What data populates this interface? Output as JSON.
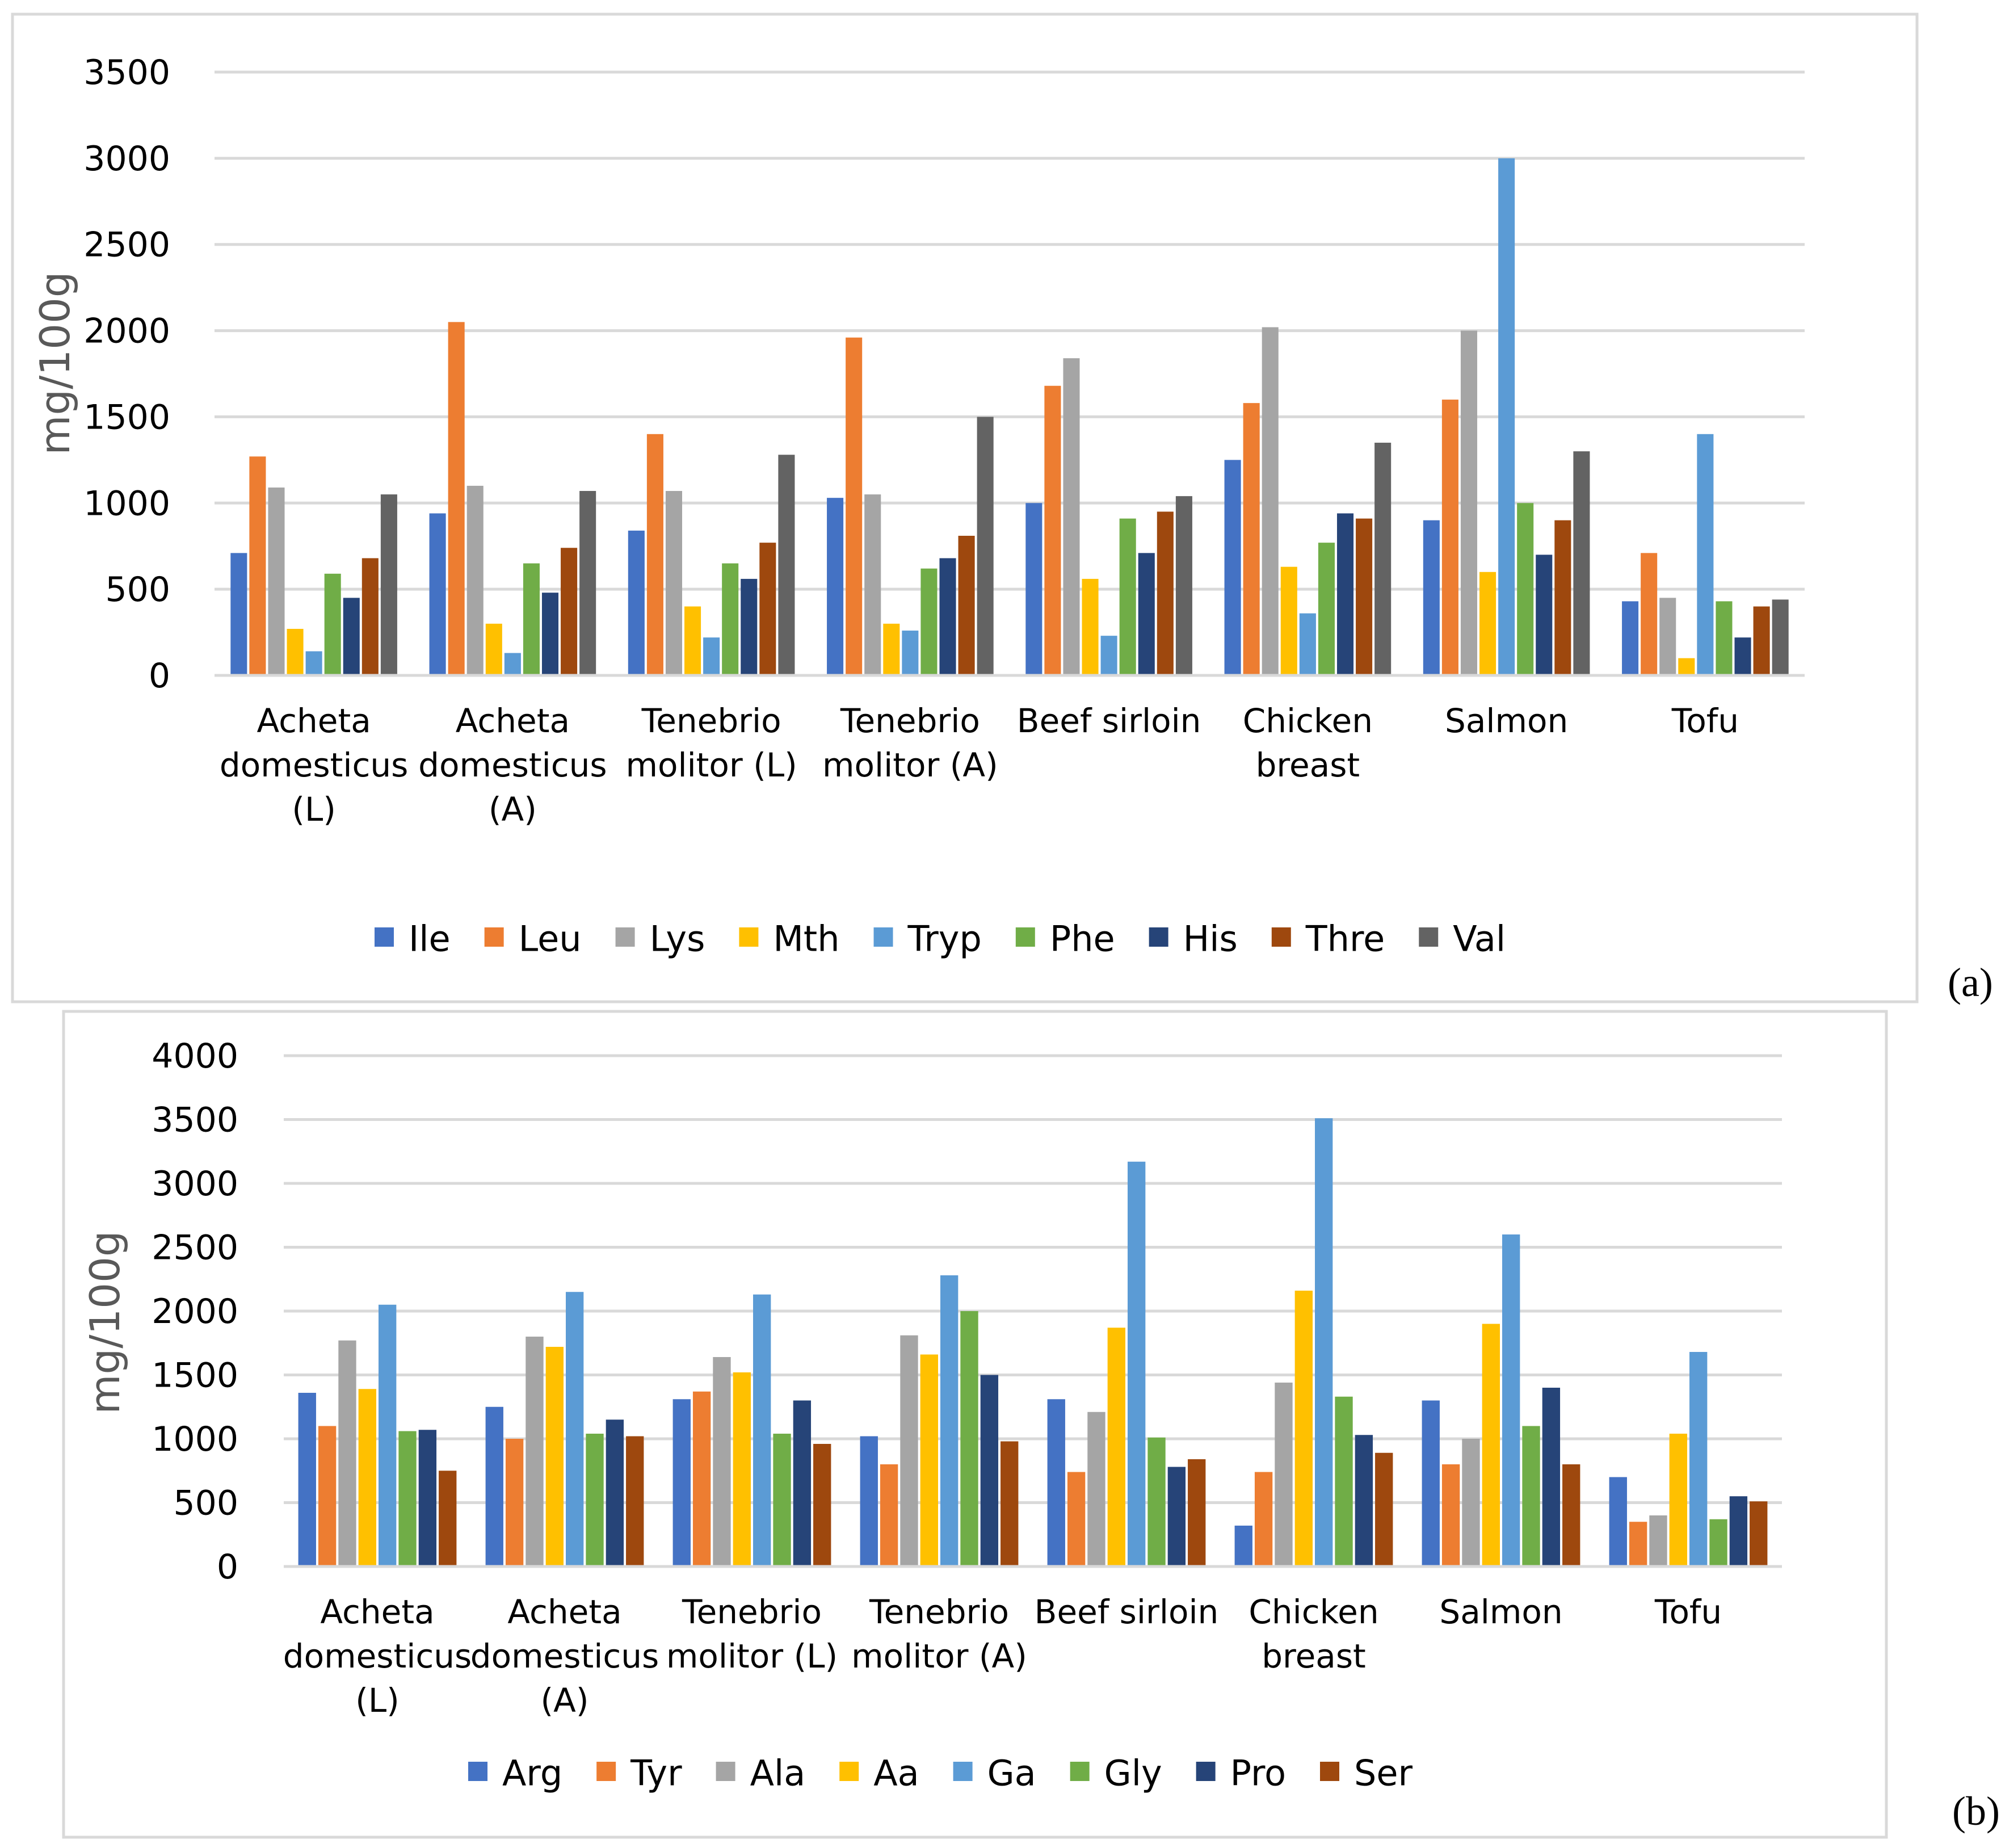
{
  "colors": {
    "background": "#ffffff",
    "frame": "#d9d9d9",
    "gridline": "#d9d9d9",
    "axis_text": "#000000",
    "ylabel_text": "#595959"
  },
  "chart_data": [
    {
      "type": "bar",
      "panel_label": "(a)",
      "title": "",
      "xlabel": "",
      "ylabel": "mg/100g",
      "ylim": [
        0,
        3500
      ],
      "yticks": [
        0,
        500,
        1000,
        1500,
        2000,
        2500,
        3000,
        3500
      ],
      "ytick_labels": [
        "0",
        "500",
        "1000",
        "1500",
        "2000",
        "2500",
        "3000",
        "3500"
      ],
      "grid": true,
      "legend_position": "bottom",
      "categories": [
        [
          "Acheta",
          "domesticus",
          "(L)"
        ],
        [
          "Acheta",
          "domesticus",
          "(A)"
        ],
        [
          "Tenebrio",
          "molitor (L)"
        ],
        [
          "Tenebrio",
          "molitor (A)"
        ],
        [
          "Beef sirloin"
        ],
        [
          "Chicken",
          "breast"
        ],
        [
          "Salmon"
        ],
        [
          "Tofu"
        ]
      ],
      "series": [
        {
          "name": "Ile",
          "color": "#4472c4",
          "values": [
            710,
            940,
            840,
            1030,
            1000,
            1250,
            900,
            430
          ]
        },
        {
          "name": "Leu",
          "color": "#ed7d31",
          "values": [
            1270,
            2050,
            1400,
            1960,
            1680,
            1580,
            1600,
            710
          ]
        },
        {
          "name": "Lys",
          "color": "#a5a5a5",
          "values": [
            1090,
            1100,
            1070,
            1050,
            1840,
            2020,
            2000,
            450
          ]
        },
        {
          "name": "Mth",
          "color": "#ffc000",
          "values": [
            270,
            300,
            400,
            300,
            560,
            630,
            600,
            100
          ]
        },
        {
          "name": "Tryp",
          "color": "#5b9bd5",
          "values": [
            140,
            130,
            220,
            260,
            230,
            360,
            3000,
            1400
          ]
        },
        {
          "name": "Phe",
          "color": "#70ad47",
          "values": [
            590,
            650,
            650,
            620,
            910,
            770,
            1000,
            430
          ]
        },
        {
          "name": "His",
          "color": "#264478",
          "values": [
            450,
            480,
            560,
            680,
            710,
            940,
            700,
            220
          ]
        },
        {
          "name": "Thre",
          "color": "#9e480e",
          "values": [
            680,
            740,
            770,
            810,
            950,
            910,
            900,
            400
          ]
        },
        {
          "name": "Val",
          "color": "#636363",
          "values": [
            1050,
            1070,
            1280,
            1500,
            1040,
            1350,
            1300,
            440
          ]
        }
      ]
    },
    {
      "type": "bar",
      "panel_label": "(b)",
      "title": "",
      "xlabel": "",
      "ylabel": "mg/100g",
      "ylim": [
        0,
        4000
      ],
      "yticks": [
        0,
        500,
        1000,
        1500,
        2000,
        2500,
        3000,
        3500,
        4000
      ],
      "ytick_labels": [
        "0",
        "500",
        "1000",
        "1500",
        "2000",
        "2500",
        "3000",
        "3500",
        "4000"
      ],
      "grid": true,
      "legend_position": "bottom",
      "categories": [
        [
          "Acheta",
          "domesticus",
          "(L)"
        ],
        [
          "Acheta",
          "domesticus",
          "(A)"
        ],
        [
          "Tenebrio",
          "molitor (L)"
        ],
        [
          "Tenebrio",
          "molitor (A)"
        ],
        [
          "Beef sirloin"
        ],
        [
          "Chicken",
          "breast"
        ],
        [
          "Salmon"
        ],
        [
          "Tofu"
        ]
      ],
      "series": [
        {
          "name": "Arg",
          "color": "#4472c4",
          "values": [
            1360,
            1250,
            1310,
            1020,
            1310,
            320,
            1300,
            700
          ]
        },
        {
          "name": "Tyr",
          "color": "#ed7d31",
          "values": [
            1100,
            1000,
            1370,
            800,
            740,
            740,
            800,
            350
          ]
        },
        {
          "name": "Ala",
          "color": "#a5a5a5",
          "values": [
            1770,
            1800,
            1640,
            1810,
            1210,
            1440,
            1000,
            400
          ]
        },
        {
          "name": "Aa",
          "color": "#ffc000",
          "values": [
            1390,
            1720,
            1520,
            1660,
            1870,
            2160,
            1900,
            1040
          ]
        },
        {
          "name": "Ga",
          "color": "#5b9bd5",
          "values": [
            2050,
            2150,
            2130,
            2280,
            3170,
            3510,
            2600,
            1680
          ]
        },
        {
          "name": "Gly",
          "color": "#70ad47",
          "values": [
            1060,
            1040,
            1040,
            2000,
            1010,
            1330,
            1100,
            370
          ]
        },
        {
          "name": "Pro",
          "color": "#264478",
          "values": [
            1070,
            1150,
            1300,
            1500,
            780,
            1030,
            1400,
            550
          ]
        },
        {
          "name": "Ser",
          "color": "#9e480e",
          "values": [
            750,
            1020,
            960,
            980,
            840,
            890,
            800,
            510
          ]
        }
      ]
    }
  ]
}
